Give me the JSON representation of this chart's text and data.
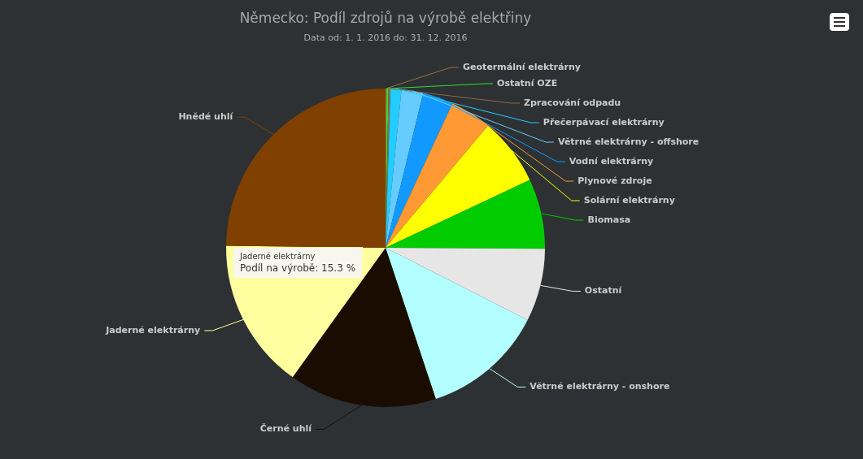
{
  "chart_data": {
    "type": "pie",
    "title": "Německo: Podíl zdrojů na výrobě elektřiny",
    "subtitle": "Data od: 1. 1. 2016 do: 31. 12. 2016",
    "categories": [
      "Geotermální elektrárny",
      "Ostatní OZE",
      "Zpracování odpadu",
      "Přečerpávací elektrárny",
      "Větrné elektrárny - offshore",
      "Vodní elektrárny",
      "Plynové zdroje",
      "Solární elektrárny",
      "Biomasa",
      "Ostatní",
      "Větrné elektrárny - onshore",
      "Černé uhlí",
      "Jaderné elektrárny",
      "Hnědé uhlí"
    ],
    "values": [
      0.1,
      0.2,
      0.2,
      1.1,
      2.2,
      3.1,
      4.2,
      6.9,
      7.1,
      7.4,
      12.4,
      15.0,
      15.3,
      24.8
    ],
    "colors": [
      "#a0703a",
      "#33dd33",
      "#8b6b4b",
      "#22ccff",
      "#66ccff",
      "#1199ff",
      "#ff9933",
      "#ffff00",
      "#00cc00",
      "#e6e6e6",
      "#b3ffff",
      "#1a0d00",
      "#ffffa0",
      "#804000"
    ],
    "annotations": [
      "Jaderné elektrárny",
      "Podíl na výrobě: 15.3 %"
    ],
    "legend": false
  }
}
